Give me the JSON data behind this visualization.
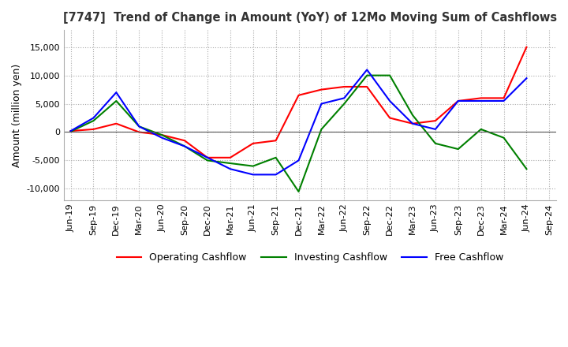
{
  "title": "[7747]  Trend of Change in Amount (YoY) of 12Mo Moving Sum of Cashflows",
  "ylabel": "Amount (million yen)",
  "x_labels": [
    "Jun-19",
    "Sep-19",
    "Dec-19",
    "Mar-20",
    "Jun-20",
    "Sep-20",
    "Dec-20",
    "Mar-21",
    "Jun-21",
    "Sep-21",
    "Dec-21",
    "Mar-22",
    "Jun-22",
    "Sep-22",
    "Dec-22",
    "Mar-23",
    "Jun-23",
    "Sep-23",
    "Dec-23",
    "Mar-24",
    "Jun-24",
    "Sep-24"
  ],
  "operating_cashflow": [
    200,
    500,
    1500,
    0,
    -500,
    -1500,
    -4500,
    -4500,
    -2000,
    -1500,
    6500,
    7500,
    8000,
    8000,
    2500,
    1500,
    2000,
    5500,
    6000,
    6000,
    15000,
    null
  ],
  "investing_cashflow": [
    100,
    2000,
    5500,
    1000,
    -500,
    -2500,
    -5000,
    -5500,
    -6000,
    -4500,
    -10500,
    500,
    5000,
    10000,
    10000,
    3000,
    -2000,
    -3000,
    500,
    -1000,
    -6500,
    null
  ],
  "free_cashflow": [
    200,
    2500,
    7000,
    1000,
    -1000,
    -2500,
    -4500,
    -6500,
    -7500,
    -7500,
    -5000,
    5000,
    6000,
    11000,
    5500,
    1500,
    500,
    5500,
    5500,
    5500,
    9500,
    null
  ],
  "ylim": [
    -12000,
    18000
  ],
  "yticks": [
    -10000,
    -5000,
    0,
    5000,
    10000,
    15000
  ],
  "operating_color": "#ff0000",
  "investing_color": "#008000",
  "free_color": "#0000ff",
  "background_color": "#ffffff",
  "grid_color": "#aaaaaa"
}
